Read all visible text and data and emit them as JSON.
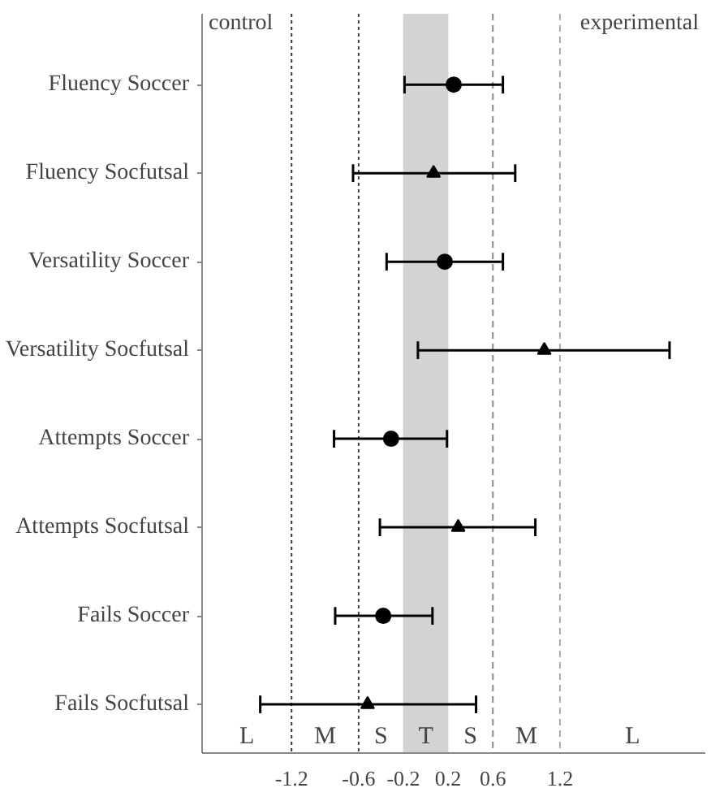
{
  "chart_data": {
    "type": "scatter",
    "orientation": "horizontal",
    "categories": [
      "Fluency Soccer",
      "Fluency Socfutsal",
      "Versatility Soccer",
      "Versatility Socfutsal",
      "Attempts Soccer",
      "Attempts Socfutsal",
      "Fails Soccer",
      "Fails Socfutsal"
    ],
    "series": [
      {
        "color": "#000000",
        "marker": "circle",
        "values": [
          0.25,
          null,
          0.17,
          null,
          -0.31,
          null,
          -0.38,
          null
        ],
        "errors": [
          [
            -0.19,
            0.69
          ],
          null,
          [
            -0.35,
            0.69
          ],
          null,
          [
            -0.82,
            0.19
          ],
          null,
          [
            -0.81,
            0.06
          ],
          null
        ]
      },
      {
        "color": "#000000",
        "marker": "triangle",
        "values": [
          null,
          0.07,
          null,
          1.06,
          null,
          0.29,
          null,
          -0.52
        ],
        "errors": [
          null,
          [
            -0.65,
            0.8
          ],
          null,
          [
            -0.07,
            2.18
          ],
          null,
          [
            -0.41,
            0.98
          ],
          null,
          [
            -1.48,
            0.45
          ]
        ]
      }
    ],
    "xlim": [
      -2.0,
      2.5
    ],
    "xticks": [
      -1.2,
      -0.6,
      -0.2,
      0.2,
      0.6,
      1.2
    ],
    "bands": [
      {
        "axis": "x",
        "from": -0.2,
        "to": 0.2,
        "color": "#d3d3d3"
      }
    ],
    "ref_lines": [
      {
        "axis": "x",
        "value": -1.2,
        "color": "#333333",
        "line_style": "dotted"
      },
      {
        "axis": "x",
        "value": -0.6,
        "color": "#444444",
        "line_style": "dotted"
      },
      {
        "axis": "x",
        "value": 0.6,
        "color": "#888888",
        "line_style": "dashed"
      },
      {
        "axis": "x",
        "value": 1.2,
        "color": "#aaaaaa",
        "line_style": "dashed"
      }
    ],
    "annotations": [
      "control",
      "experimental",
      "L",
      "M",
      "S",
      "T",
      "S",
      "M",
      "L"
    ],
    "grid": false
  }
}
